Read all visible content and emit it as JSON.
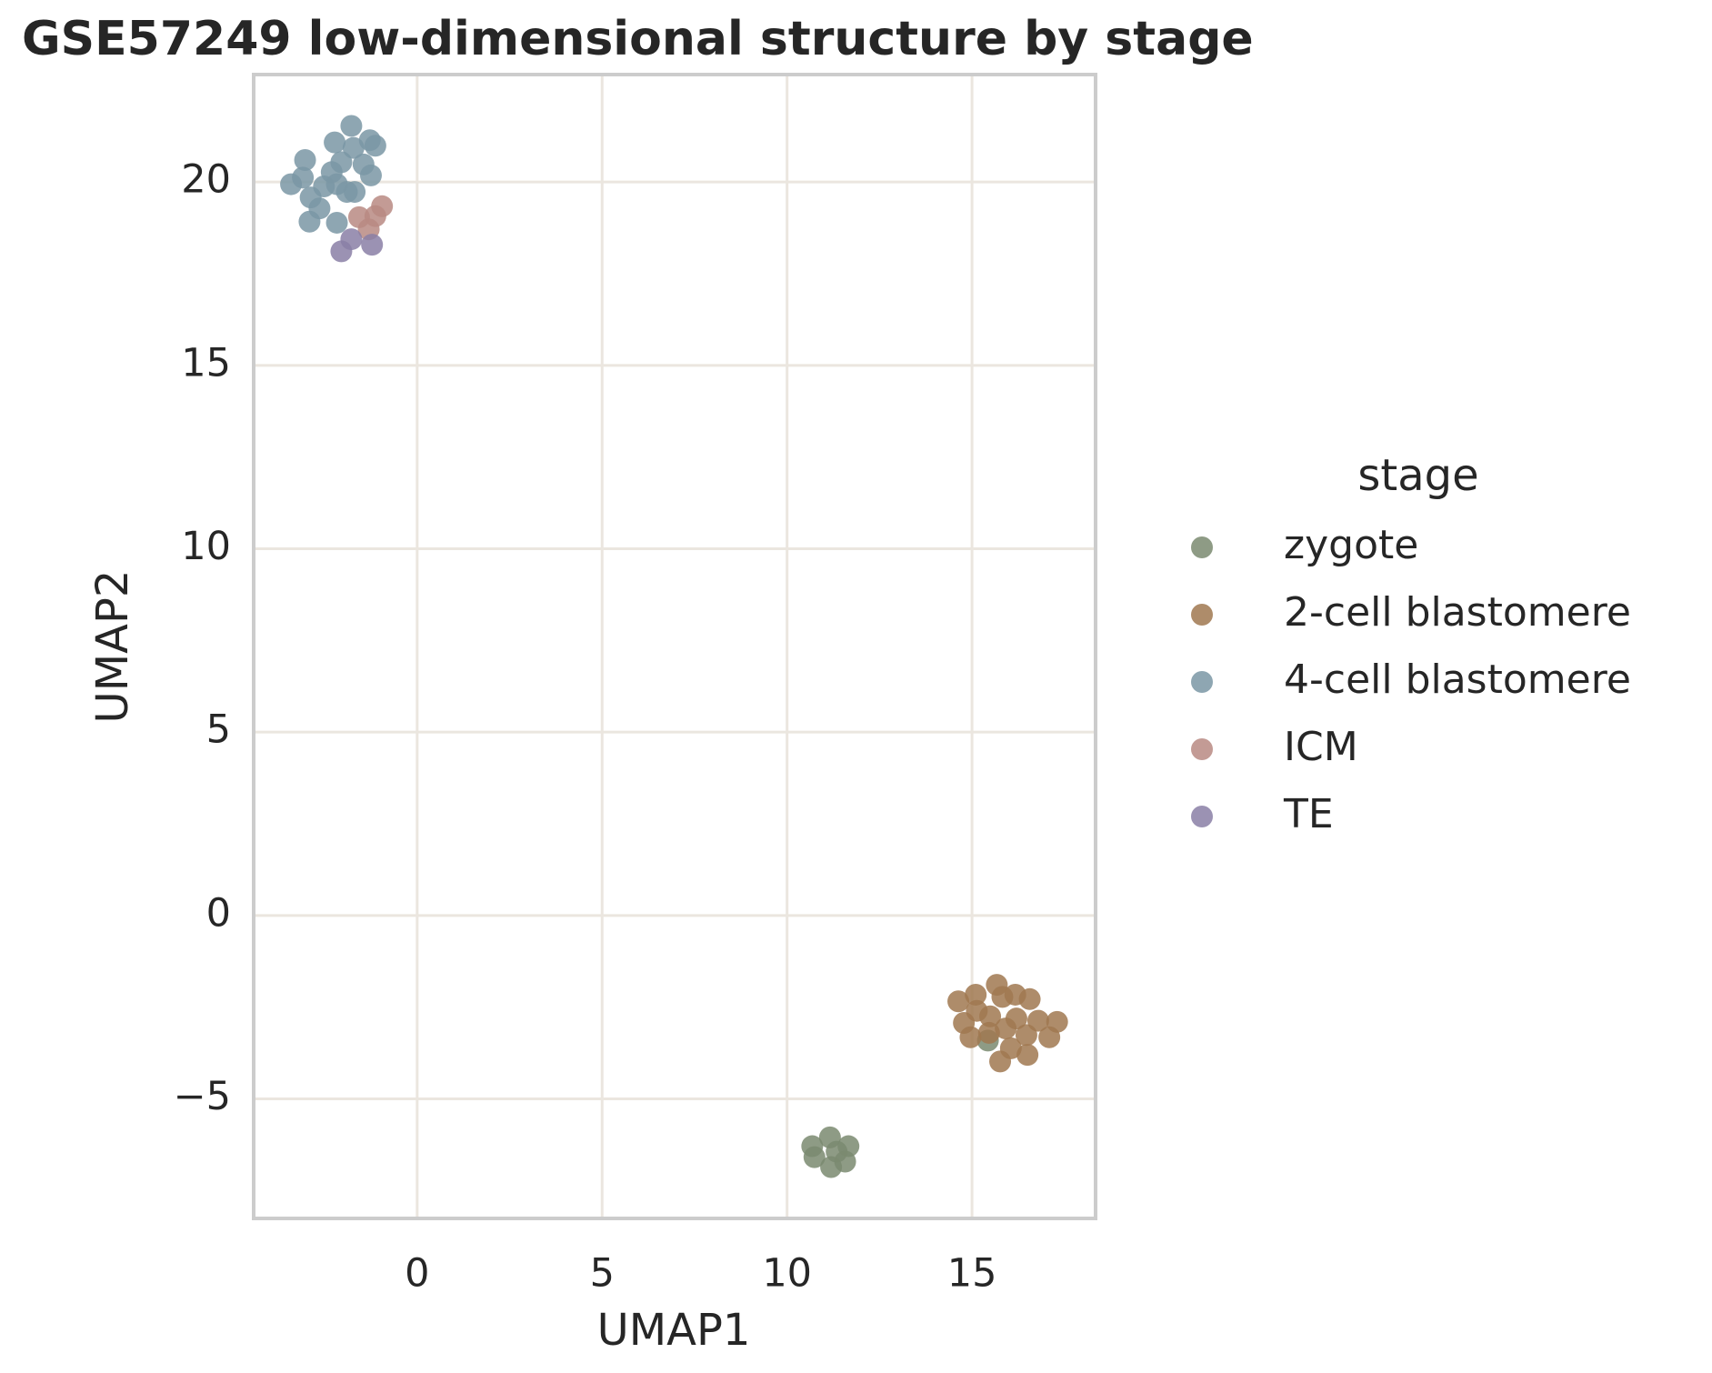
{
  "chart_data": {
    "type": "scatter",
    "title": "GSE57249 low-dimensional structure by stage",
    "x_label": "UMAP1",
    "y_label": "UMAP2",
    "legend_title": "stage",
    "legend_position": "outside right",
    "grid": true,
    "xlim": [
      -4.42,
      18.34
    ],
    "ylim": [
      -8.26,
      22.93
    ],
    "xticks": [
      0,
      5,
      10,
      15
    ],
    "yticks": [
      {
        "value": -5,
        "label": "−5"
      },
      0,
      5,
      10,
      15,
      20
    ],
    "series": [
      {
        "name": "zygote",
        "color": "#7a8a70",
        "x": [
          10.68,
          10.74,
          11.16,
          11.34,
          11.66,
          11.57,
          11.19,
          15.43
        ],
        "y": [
          -6.29,
          -6.59,
          -6.05,
          -6.44,
          -6.29,
          -6.71,
          -6.86,
          -3.41
        ]
      },
      {
        "name": "2-cell blastomere",
        "color": "#a07850",
        "x": [
          14.63,
          15.1,
          15.67,
          15.82,
          16.17,
          16.56,
          14.78,
          15.13,
          15.49,
          14.96,
          15.91,
          16.2,
          16.47,
          16.79,
          17.3,
          17.09,
          16.05,
          15.76,
          16.5,
          15.46
        ],
        "y": [
          -2.34,
          -2.16,
          -1.89,
          -2.22,
          -2.16,
          -2.28,
          -2.93,
          -2.6,
          -2.75,
          -3.32,
          -3.08,
          -2.81,
          -3.26,
          -2.87,
          -2.9,
          -3.32,
          -3.62,
          -3.98,
          -3.8,
          -3.2
        ]
      },
      {
        "name": "4-cell blastomere",
        "color": "#7a96a4",
        "x": [
          -3.03,
          -3.41,
          -3.09,
          -2.88,
          -2.64,
          -2.91,
          -2.52,
          -2.31,
          -2.23,
          -2.05,
          -2.17,
          -1.9,
          -1.78,
          -1.72,
          -1.69,
          -1.45,
          -1.28,
          -1.13,
          -1.25,
          -2.17
        ],
        "y": [
          20.6,
          19.94,
          20.12,
          19.58,
          19.28,
          18.92,
          19.88,
          20.27,
          21.08,
          20.54,
          19.94,
          19.73,
          21.53,
          20.93,
          19.73,
          20.48,
          21.14,
          20.99,
          20.18,
          18.89
        ]
      },
      {
        "name": "ICM",
        "color": "#b88a82",
        "x": [
          -1.57,
          -1.31,
          -1.13,
          -0.95
        ],
        "y": [
          19.04,
          18.71,
          19.07,
          19.34
        ]
      },
      {
        "name": "TE",
        "color": "#8a7fa6",
        "x": [
          -2.05,
          -1.78,
          -1.22
        ],
        "y": [
          18.11,
          18.44,
          18.29
        ]
      }
    ]
  }
}
